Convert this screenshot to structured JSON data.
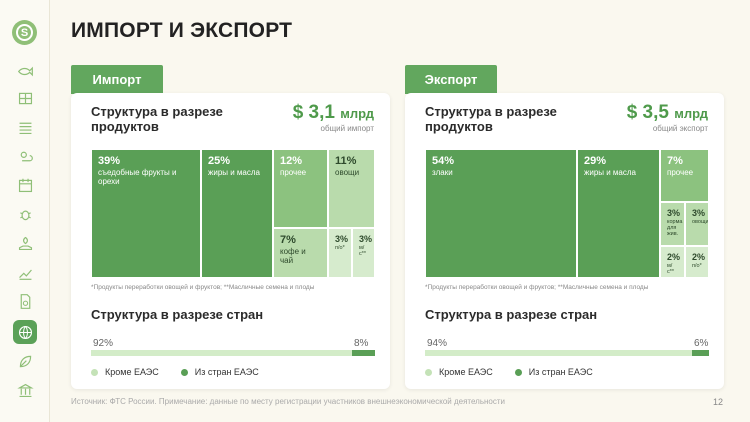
{
  "page": {
    "title": "ИМПОРТ И ЭКСПОРТ",
    "source_note": "Источник: ФТС России. Примечание: данные по месту регистрации участников внешнеэкономической деятельности",
    "page_number": "12"
  },
  "sidebar": {
    "logo": "S",
    "items": [
      {
        "icon": "fish-icon"
      },
      {
        "icon": "grid-icon"
      },
      {
        "icon": "field-icon"
      },
      {
        "icon": "weather-icon"
      },
      {
        "icon": "calendar-icon"
      },
      {
        "icon": "bug-icon"
      },
      {
        "icon": "plant-hand-icon"
      },
      {
        "icon": "chart-icon"
      },
      {
        "icon": "document-icon"
      },
      {
        "icon": "globe-icon",
        "active": true
      },
      {
        "icon": "leaf-icon"
      },
      {
        "icon": "bank-icon"
      }
    ]
  },
  "import": {
    "tab_label": "Импорт",
    "card_title": "Структура в разрезе продуктов",
    "total_value": "$ 3,1",
    "total_unit": "млрд",
    "total_note": "общий импорт",
    "products": [
      {
        "pct": "39%",
        "label": "съедобные фрукты и орехи"
      },
      {
        "pct": "25%",
        "label": "жиры и масла"
      },
      {
        "pct": "12%",
        "label": "прочее"
      },
      {
        "pct": "11%",
        "label": "овощи"
      },
      {
        "pct": "7%",
        "label": "кофе и чай"
      },
      {
        "pct": "3%",
        "label": "п/о*"
      },
      {
        "pct": "3%",
        "label": "м/с**"
      }
    ],
    "footnote": "*Продукты переработки овощей и фруктов; **Масличные семена и плоды",
    "countries_title": "Структура в разрезе стран",
    "non_eaeu_label": "92%",
    "eaeu_label": "8%",
    "non_eaeu_share": 92,
    "eaeu_share": 8
  },
  "export": {
    "tab_label": "Экспорт",
    "card_title": "Структура в разрезе продуктов",
    "total_value": "$ 3,5",
    "total_unit": "млрд",
    "total_note": "общий экспорт",
    "products": [
      {
        "pct": "54%",
        "label": "злаки"
      },
      {
        "pct": "29%",
        "label": "жиры и масла"
      },
      {
        "pct": "7%",
        "label": "прочее"
      },
      {
        "pct": "3%",
        "label": "корма для жив."
      },
      {
        "pct": "3%",
        "label": "овощи"
      },
      {
        "pct": "2%",
        "label": "м/с**"
      },
      {
        "pct": "2%",
        "label": "п/о*"
      }
    ],
    "footnote": "*Продукты переработки овощей и фруктов; **Масличные семена и плоды",
    "countries_title": "Структура в разрезе стран",
    "non_eaeu_label": "94%",
    "eaeu_label": "6%",
    "non_eaeu_share": 94,
    "eaeu_share": 6
  },
  "legend": {
    "non_eaeu": "Кроме ЕАЭС",
    "eaeu": "Из стран ЕАЭС"
  },
  "colors": {
    "accent": "#5a9f56",
    "light": "#d3ecc8",
    "background": "#faf8ef"
  }
}
